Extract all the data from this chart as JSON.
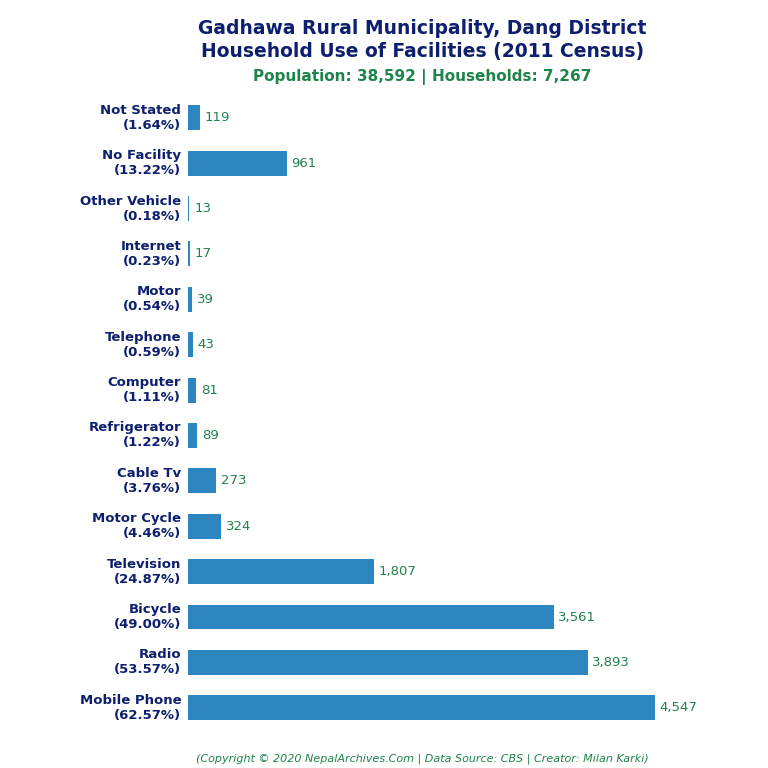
{
  "title_line1": "Gadhawa Rural Municipality, Dang District",
  "title_line2": "Household Use of Facilities (2011 Census)",
  "subtitle": "Population: 38,592 | Households: 7,267",
  "footer": "(Copyright © 2020 NepalArchives.Com | Data Source: CBS | Creator: Milan Karki)",
  "categories": [
    "Mobile Phone\n(62.57%)",
    "Radio\n(53.57%)",
    "Bicycle\n(49.00%)",
    "Television\n(24.87%)",
    "Motor Cycle\n(4.46%)",
    "Cable Tv\n(3.76%)",
    "Refrigerator\n(1.22%)",
    "Computer\n(1.11%)",
    "Telephone\n(0.59%)",
    "Motor\n(0.54%)",
    "Internet\n(0.23%)",
    "Other Vehicle\n(0.18%)",
    "No Facility\n(13.22%)",
    "Not Stated\n(1.64%)"
  ],
  "values": [
    4547,
    3893,
    3561,
    1807,
    324,
    273,
    89,
    81,
    43,
    39,
    17,
    13,
    961,
    119
  ],
  "bar_color": "#2e86c1",
  "title_color": "#0d1f6e",
  "subtitle_color": "#1e8449",
  "value_color": "#1e8449",
  "footer_color": "#1e8449",
  "background_color": "#ffffff",
  "xlim": [
    0,
    5200
  ],
  "bar_height": 0.55,
  "label_fontsize": 9.5,
  "value_fontsize": 9.5,
  "title_fontsize": 13.5,
  "subtitle_fontsize": 11
}
